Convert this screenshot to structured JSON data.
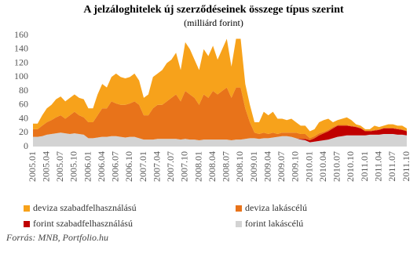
{
  "chart_data": {
    "type": "stacked_area",
    "title": "A jelzáloghitelek új szerződéseinek összege típus szerint",
    "subtitle": "(milliárd forint)",
    "source": "Forrás: MNB, Portfolio.hu",
    "categories": [
      "2005.01",
      null,
      null,
      "2005.04",
      null,
      null,
      "2005.07",
      null,
      null,
      "2005.10",
      null,
      null,
      "2006.01",
      null,
      null,
      "2006.04",
      null,
      null,
      "2006.07",
      null,
      null,
      "2006.10",
      null,
      null,
      "2007.01",
      null,
      null,
      "2007.04",
      null,
      null,
      "2007.07",
      null,
      null,
      "2007.10",
      null,
      null,
      "2008.01",
      null,
      null,
      "2008.04",
      null,
      null,
      "2008.07",
      null,
      null,
      "2008.10",
      null,
      null,
      "2009.01",
      null,
      null,
      "2009.04",
      null,
      null,
      "2009.07",
      null,
      null,
      "2009.10",
      null,
      null,
      "2010.01",
      null,
      null,
      "2010.04",
      null,
      null,
      "2010.07",
      null,
      null,
      "2010.10",
      null,
      null,
      "2011.01",
      null,
      null,
      "2011.04",
      null,
      null,
      "2011.07",
      null,
      null,
      "2011.10"
    ],
    "series": [
      {
        "name": "forint lakáscélú",
        "color": "#d3d3d3",
        "values": [
          14,
          14,
          15,
          17,
          18,
          19,
          20,
          19,
          18,
          19,
          18,
          17,
          12,
          12,
          13,
          14,
          14,
          15,
          15,
          14,
          13,
          14,
          14,
          12,
          10,
          10,
          10,
          11,
          11,
          11,
          11,
          11,
          10,
          11,
          10,
          10,
          9,
          10,
          10,
          10,
          10,
          10,
          10,
          9,
          10,
          10,
          11,
          12,
          12,
          11,
          12,
          12,
          13,
          14,
          15,
          15,
          14,
          12,
          10,
          9,
          6,
          7,
          8,
          9,
          10,
          12,
          14,
          15,
          16,
          16,
          16,
          16,
          16,
          17,
          17,
          17,
          18,
          18,
          18,
          17,
          17,
          16
        ]
      },
      {
        "name": "forint szabadfelhasználású",
        "color": "#c00000",
        "values": [
          0,
          0,
          0,
          0,
          0,
          0,
          0,
          0,
          0,
          0,
          0,
          0,
          0,
          0,
          0,
          0,
          0,
          0,
          0,
          0,
          0,
          0,
          0,
          0,
          0,
          0,
          0,
          0,
          0,
          0,
          0,
          0,
          0,
          0,
          0,
          0,
          0,
          0,
          0,
          0,
          0,
          0,
          0,
          0,
          0,
          0,
          0,
          0,
          0,
          0,
          0,
          0,
          0,
          0,
          0,
          0,
          0,
          0,
          1,
          2,
          3,
          5,
          8,
          10,
          12,
          14,
          16,
          15,
          14,
          13,
          12,
          10,
          6,
          5,
          6,
          7,
          8,
          8,
          8,
          8,
          7,
          6
        ]
      },
      {
        "name": "deviza lakáscélú",
        "color": "#e8731a",
        "values": [
          11,
          11,
          15,
          18,
          20,
          23,
          25,
          21,
          27,
          31,
          27,
          25,
          23,
          23,
          32,
          41,
          41,
          50,
          47,
          46,
          47,
          48,
          51,
          48,
          35,
          35,
          45,
          49,
          49,
          54,
          59,
          64,
          55,
          69,
          65,
          60,
          51,
          65,
          60,
          70,
          65,
          70,
          75,
          61,
          75,
          75,
          44,
          23,
          8,
          7,
          8,
          6,
          7,
          4,
          5,
          5,
          6,
          8,
          7,
          7,
          3,
          3,
          3,
          2,
          2,
          2,
          1,
          1,
          1,
          1,
          1,
          1,
          1,
          1,
          1,
          1,
          1,
          1,
          1,
          1,
          1,
          1
        ]
      },
      {
        "name": "deviza szabadfelhasználású",
        "color": "#f7a21b",
        "values": [
          8,
          8,
          15,
          20,
          22,
          26,
          27,
          25,
          25,
          25,
          25,
          26,
          20,
          20,
          30,
          35,
          30,
          35,
          43,
          40,
          38,
          38,
          40,
          35,
          25,
          30,
          45,
          45,
          50,
          55,
          55,
          60,
          45,
          70,
          65,
          55,
          50,
          65,
          60,
          65,
          50,
          60,
          70,
          45,
          70,
          70,
          35,
          25,
          15,
          17,
          30,
          27,
          30,
          22,
          20,
          18,
          20,
          15,
          12,
          12,
          10,
          10,
          16,
          17,
          16,
          7,
          7,
          9,
          11,
          8,
          3,
          3,
          2,
          2,
          6,
          3,
          3,
          5,
          5,
          4,
          5,
          3
        ]
      }
    ],
    "legend_order": [
      3,
      2,
      1,
      0
    ],
    "ylim": [
      0,
      160
    ],
    "yticks": [
      0,
      20,
      40,
      60,
      80,
      100,
      120,
      140,
      160
    ],
    "grid": false
  }
}
